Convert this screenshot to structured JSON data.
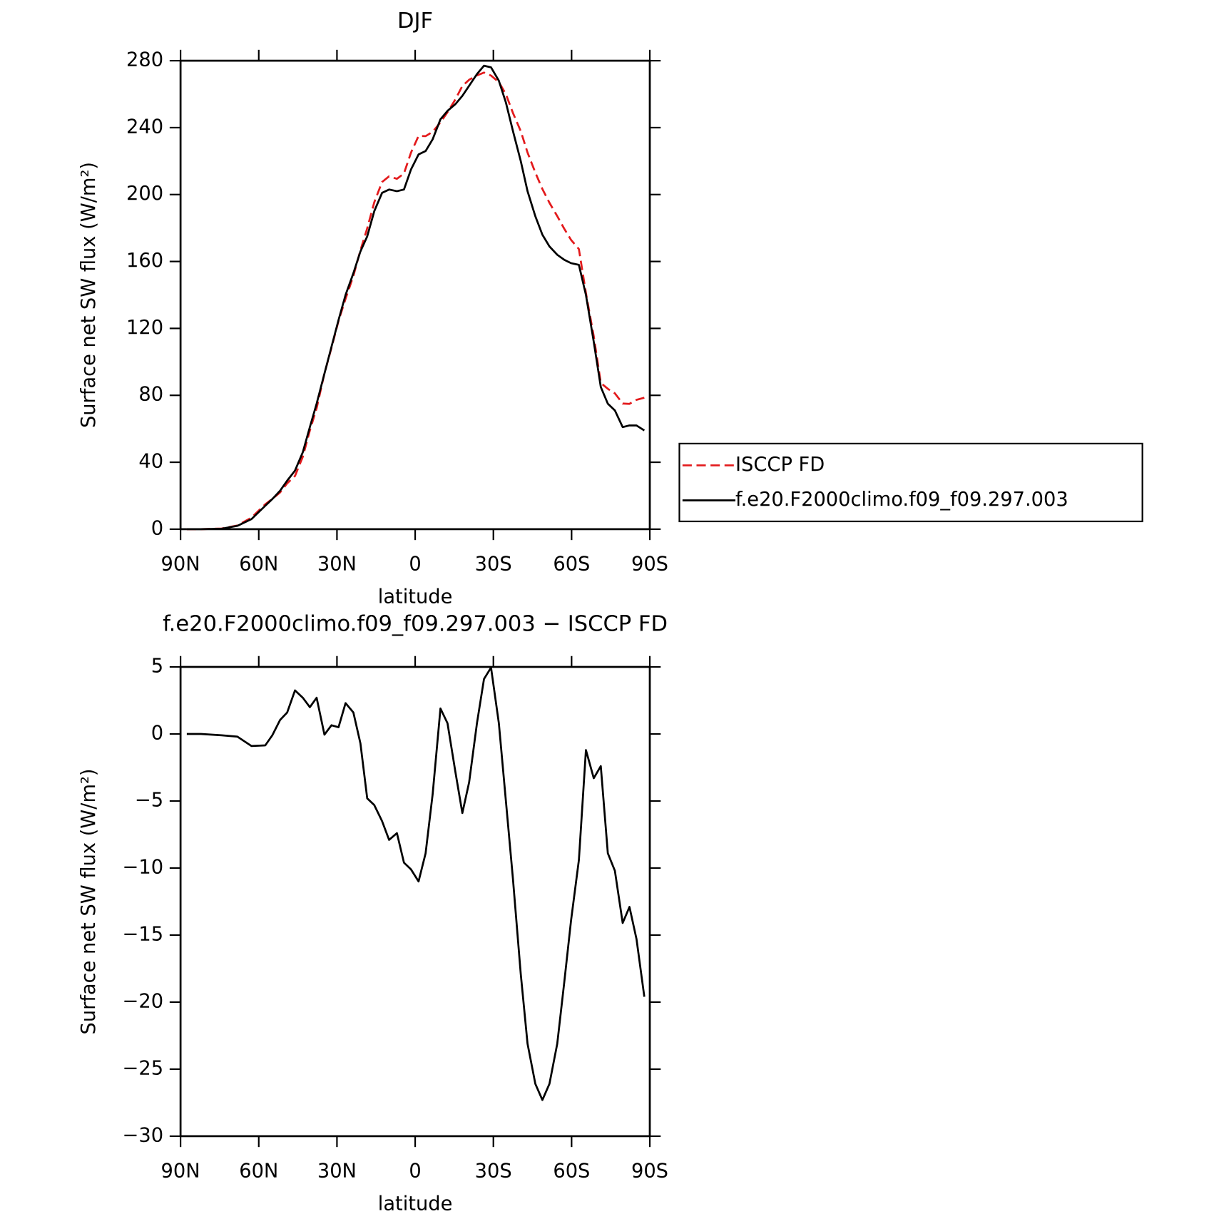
{
  "chart_data": [
    {
      "type": "line",
      "title": "DJF",
      "xlabel": "latitude",
      "ylabel": "Surface net SW flux (W/m²)",
      "x": [
        87.6,
        82.2,
        74.2,
        68.2,
        62.8,
        57.5,
        54.8,
        51.8,
        49.1,
        46.1,
        43.1,
        40.4,
        37.8,
        34.8,
        32.1,
        29.4,
        26.7,
        23.7,
        21.0,
        18.4,
        15.7,
        12.7,
        10.0,
        7.0,
        4.3,
        1.6,
        -1.3,
        -4.0,
        -6.7,
        -9.7,
        -12.4,
        -15.4,
        -18.1,
        -20.7,
        -23.7,
        -26.4,
        -29.1,
        -32.1,
        -34.8,
        -37.5,
        -40.5,
        -43.1,
        -46.1,
        -48.8,
        -51.5,
        -54.5,
        -57.2,
        -59.8,
        -62.8,
        -65.5,
        -68.5,
        -71.2,
        -73.9,
        -76.6,
        -79.6,
        -82.2,
        -84.9,
        -87.9
      ],
      "series": [
        {
          "name": "ISCCP FD",
          "color": "#e31a1c",
          "style": "dashed",
          "values": [
            0,
            0,
            0.4,
            2.2,
            6.9,
            14.9,
            18.1,
            22,
            27.4,
            31.8,
            43.3,
            59,
            72.3,
            93.1,
            108.4,
            124.5,
            137.7,
            151.4,
            166.7,
            179.8,
            195.3,
            207.5,
            210.9,
            209.4,
            212.6,
            225.1,
            235,
            234.9,
            237.5,
            243.1,
            249.2,
            256.8,
            264.9,
            268.6,
            271.2,
            272.9,
            271.1,
            267.2,
            260,
            248.8,
            237.9,
            225.1,
            213.1,
            203.3,
            195.1,
            187.1,
            179.5,
            172.9,
            167.4,
            141.2,
            115.3,
            87.4,
            83.9,
            81.2,
            75.1,
            74.9,
            77.3,
            78.6
          ]
        },
        {
          "name": "f.e20.F2000climo.f09_f09.297.003",
          "color": "#000000",
          "style": "solid",
          "values": [
            0,
            0,
            0.3,
            2,
            6,
            14,
            18,
            23,
            29,
            35,
            46,
            61,
            75,
            93,
            109,
            125,
            140,
            153,
            166,
            175,
            190,
            201,
            203,
            202,
            203,
            215,
            224,
            226,
            233,
            245,
            250,
            254,
            259,
            265,
            272,
            277,
            276,
            268,
            255,
            238,
            220,
            202,
            187,
            176,
            169,
            164,
            161,
            159,
            158,
            140,
            112,
            85,
            75,
            71,
            61,
            62,
            62,
            59
          ]
        }
      ],
      "xlim": [
        90,
        -90
      ],
      "xticks": [
        {
          "value": 90,
          "label": "90N"
        },
        {
          "value": 60,
          "label": "60N"
        },
        {
          "value": 30,
          "label": "30N"
        },
        0,
        {
          "value": -30,
          "label": "30S"
        },
        {
          "value": -60,
          "label": "60S"
        },
        {
          "value": -90,
          "label": "90S"
        }
      ],
      "ylim": [
        0,
        280
      ],
      "yticks": [
        0,
        40,
        80,
        120,
        160,
        200,
        240,
        280
      ],
      "legend": "outside-right"
    },
    {
      "type": "line",
      "title": "f.e20.F2000climo.f09_f09.297.003 − ISCCP FD",
      "xlabel": "latitude",
      "ylabel": "Surface net SW flux (W/m²)",
      "x": [
        87.6,
        82.2,
        74.2,
        68.2,
        62.8,
        57.5,
        54.8,
        51.8,
        49.1,
        46.1,
        43.1,
        40.4,
        37.8,
        34.8,
        32.1,
        29.4,
        26.7,
        23.7,
        21.0,
        18.4,
        15.7,
        12.7,
        10.0,
        7.0,
        4.3,
        1.6,
        -1.3,
        -4.0,
        -6.7,
        -9.7,
        -12.4,
        -15.4,
        -18.1,
        -20.7,
        -23.7,
        -26.4,
        -29.1,
        -32.1,
        -34.8,
        -37.5,
        -40.5,
        -43.1,
        -46.1,
        -48.8,
        -51.5,
        -54.5,
        -57.2,
        -59.8,
        -62.8,
        -65.5,
        -68.5,
        -71.2,
        -73.9,
        -76.6,
        -79.6,
        -82.2,
        -84.9,
        -87.9
      ],
      "series": [
        {
          "color": "#000000",
          "style": "solid",
          "values": [
            0,
            0,
            -0.1,
            -0.2,
            -0.9,
            -0.85,
            -0.1,
            1.05,
            1.6,
            3.25,
            2.7,
            2.0,
            2.7,
            -0.05,
            0.65,
            0.5,
            2.3,
            1.6,
            -0.7,
            -4.8,
            -5.3,
            -6.5,
            -7.9,
            -7.4,
            -9.6,
            -10.1,
            -11.0,
            -8.9,
            -4.5,
            1.9,
            0.8,
            -2.8,
            -5.9,
            -3.6,
            0.8,
            4.1,
            4.95,
            0.8,
            -5.0,
            -10.8,
            -17.9,
            -23.1,
            -26.1,
            -27.3,
            -26.1,
            -23.1,
            -18.5,
            -13.9,
            -9.4,
            -1.2,
            -3.3,
            -2.4,
            -8.9,
            -10.2,
            -14.1,
            -12.9,
            -15.3,
            -19.6
          ]
        }
      ],
      "xlim": [
        90,
        -90
      ],
      "xticks": [
        {
          "value": 90,
          "label": "90N"
        },
        {
          "value": 60,
          "label": "60N"
        },
        {
          "value": 30,
          "label": "30N"
        },
        0,
        {
          "value": -30,
          "label": "30S"
        },
        {
          "value": -60,
          "label": "60S"
        },
        {
          "value": -90,
          "label": "90S"
        }
      ],
      "ylim": [
        -30,
        5
      ],
      "yticks": [
        {
          "value": -30,
          "label": "−30"
        },
        {
          "value": -25,
          "label": "−25"
        },
        {
          "value": -20,
          "label": "−20"
        },
        {
          "value": -15,
          "label": "−15"
        },
        {
          "value": -10,
          "label": "−10"
        },
        {
          "value": -5,
          "label": "−5"
        },
        0,
        5
      ]
    }
  ]
}
